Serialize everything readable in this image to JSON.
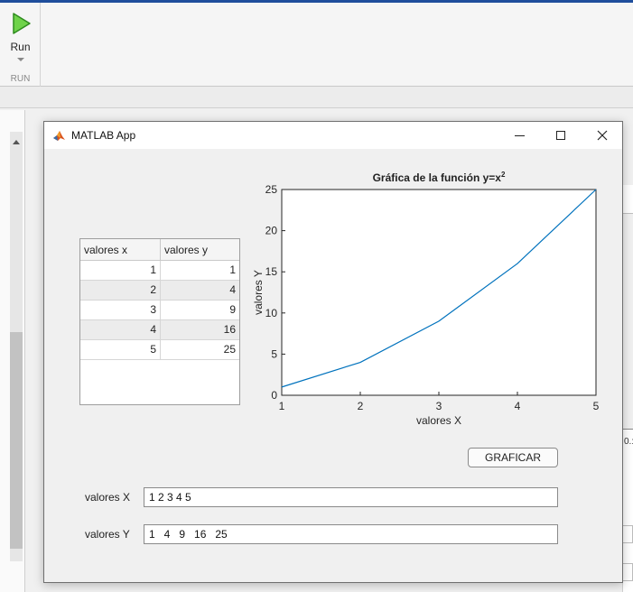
{
  "toolstrip": {
    "run_label": "Run",
    "section_label": "RUN",
    "run_icon": "play-icon"
  },
  "background": {
    "peek_text": "0.:"
  },
  "window": {
    "title": "MATLAB App",
    "icon": "matlab-logo-icon",
    "buttons": [
      "minimize-icon",
      "maximize-icon",
      "close-icon"
    ]
  },
  "table": {
    "headers": [
      "valores x",
      "valores y"
    ],
    "rows": [
      {
        "x": "1",
        "y": "1"
      },
      {
        "x": "2",
        "y": "4"
      },
      {
        "x": "3",
        "y": "9"
      },
      {
        "x": "4",
        "y": "16"
      },
      {
        "x": "5",
        "y": "25"
      }
    ]
  },
  "chart_data": {
    "type": "line",
    "title": "Gráfica de la función y=x",
    "title_superscript": "2",
    "xlabel": "valores X",
    "ylabel": "valores Y",
    "x": [
      1,
      2,
      3,
      4,
      5
    ],
    "series": [
      {
        "values": [
          1,
          4,
          9,
          16,
          25
        ],
        "color": "#0072bd"
      }
    ],
    "xlim": [
      1,
      5
    ],
    "ylim": [
      0,
      25
    ],
    "xticks": [
      1,
      2,
      3,
      4,
      5
    ],
    "yticks": [
      0,
      5,
      10,
      15,
      20,
      25
    ],
    "grid": true
  },
  "controls": {
    "graficar_label": "GRAFICAR",
    "x_label": "valores X",
    "x_value": "1 2 3 4 5",
    "y_label": "valores Y",
    "y_value": "1   4   9   16   25"
  }
}
